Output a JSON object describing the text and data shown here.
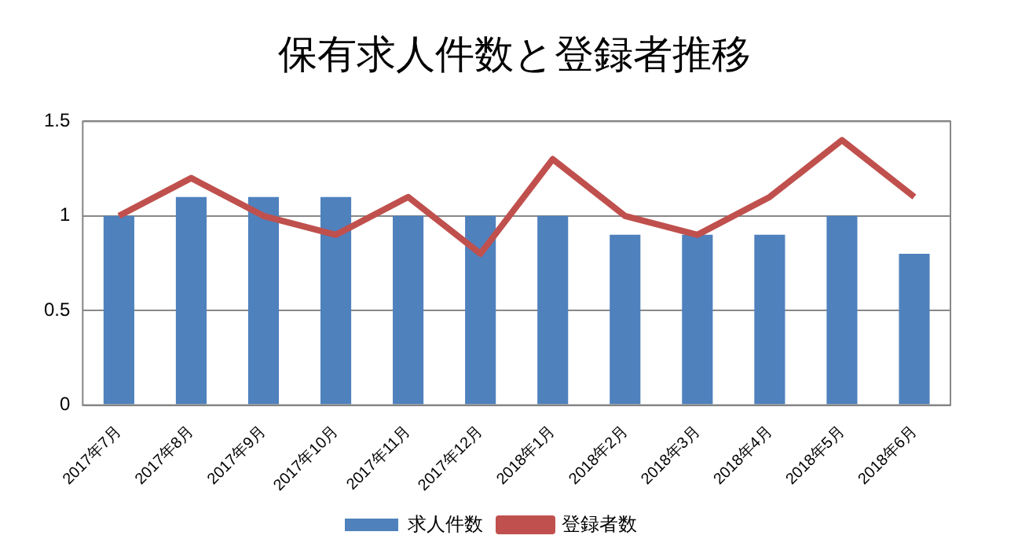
{
  "chart_data": {
    "type": "bar",
    "title": "保有求人件数と登録者推移",
    "categories": [
      "2017年7月",
      "2017年8月",
      "2017年9月",
      "2017年10月",
      "2017年11月",
      "2017年12月",
      "2018年1月",
      "2018年2月",
      "2018年3月",
      "2018年4月",
      "2018年5月",
      "2018年6月"
    ],
    "series": [
      {
        "name": "求人件数",
        "color": "#4f81bd",
        "values": [
          1,
          1.1,
          1.1,
          1.1,
          1,
          1,
          1,
          0.9,
          0.9,
          0.9,
          1,
          0.8
        ]
      },
      {
        "name": "登録者数",
        "type": "line",
        "color": "#c0504d",
        "values": [
          1,
          1.2,
          1,
          0.9,
          1.1,
          0.8,
          1.3,
          1,
          0.9,
          1.1,
          1.4,
          1.1
        ]
      }
    ],
    "ylim": [
      0,
      1.5
    ],
    "yticks": [
      0,
      0.5,
      1,
      1.5
    ],
    "grid": "y",
    "legend": "bottom",
    "marker": "none",
    "line_style": "solid"
  }
}
